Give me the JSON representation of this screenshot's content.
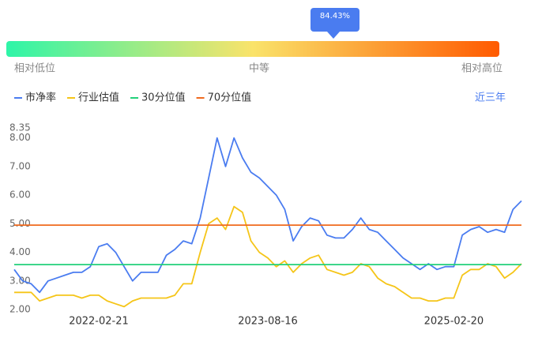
{
  "gauge": {
    "percentile_label": "84.43%",
    "low": "相对低位",
    "mid": "中等",
    "high": "相对高位"
  },
  "range_button": "近三年",
  "chart_data": {
    "type": "line",
    "categories": [
      null,
      null,
      null,
      null,
      null,
      null,
      null,
      null,
      null,
      null,
      "2022-02-21",
      null,
      null,
      null,
      null,
      null,
      null,
      null,
      null,
      null,
      null,
      null,
      null,
      null,
      null,
      null,
      null,
      null,
      null,
      null,
      "2023-08-16",
      null,
      null,
      null,
      null,
      null,
      null,
      null,
      null,
      null,
      null,
      null,
      null,
      null,
      null,
      null,
      null,
      null,
      null,
      null,
      null,
      null,
      "2025-02-20",
      null,
      null,
      null,
      null,
      null,
      null,
      null,
      null
    ],
    "series": [
      {
        "name": "市净率",
        "color": "#4a7cf0",
        "values": [
          3.4,
          3.0,
          2.9,
          2.6,
          3.0,
          3.1,
          3.2,
          3.3,
          3.3,
          3.5,
          4.2,
          4.3,
          4.0,
          3.5,
          3.0,
          3.3,
          3.3,
          3.3,
          3.9,
          4.1,
          4.4,
          4.3,
          5.2,
          6.6,
          8.0,
          7.0,
          8.0,
          7.3,
          6.8,
          6.6,
          6.3,
          6.0,
          5.5,
          4.4,
          4.9,
          5.2,
          5.1,
          4.6,
          4.5,
          4.5,
          4.8,
          5.2,
          4.8,
          4.7,
          4.4,
          4.1,
          3.8,
          3.6,
          3.4,
          3.6,
          3.4,
          3.5,
          3.5,
          4.6,
          4.8,
          4.9,
          4.7,
          4.8,
          4.7,
          5.5,
          5.8
        ]
      },
      {
        "name": "行业估值",
        "color": "#f5c518",
        "values": [
          2.6,
          2.6,
          2.6,
          2.3,
          2.4,
          2.5,
          2.5,
          2.5,
          2.4,
          2.5,
          2.5,
          2.3,
          2.2,
          2.1,
          2.3,
          2.4,
          2.4,
          2.4,
          2.4,
          2.5,
          2.9,
          2.9,
          4.0,
          5.0,
          5.2,
          4.8,
          5.6,
          5.4,
          4.4,
          4.0,
          3.8,
          3.5,
          3.7,
          3.3,
          3.6,
          3.8,
          3.9,
          3.4,
          3.3,
          3.2,
          3.3,
          3.6,
          3.5,
          3.1,
          2.9,
          2.8,
          2.6,
          2.4,
          2.4,
          2.3,
          2.3,
          2.4,
          2.4,
          3.2,
          3.4,
          3.4,
          3.6,
          3.5,
          3.1,
          3.3,
          3.6
        ]
      },
      {
        "name": "30分位值",
        "color": "#22d07a",
        "values": [
          3.57,
          3.57,
          3.57,
          3.57,
          3.57,
          3.57,
          3.57,
          3.57,
          3.57,
          3.57,
          3.57,
          3.57,
          3.57,
          3.57,
          3.57,
          3.57,
          3.57,
          3.57,
          3.57,
          3.57,
          3.57,
          3.57,
          3.57,
          3.57,
          3.57,
          3.57,
          3.57,
          3.57,
          3.57,
          3.57,
          3.57,
          3.57,
          3.57,
          3.57,
          3.57,
          3.57,
          3.57,
          3.57,
          3.57,
          3.57,
          3.57,
          3.57,
          3.57,
          3.57,
          3.57,
          3.57,
          3.57,
          3.57,
          3.57,
          3.57,
          3.57,
          3.57,
          3.57,
          3.57,
          3.57,
          3.57,
          3.57,
          3.57,
          3.57,
          3.57,
          3.57
        ]
      },
      {
        "name": "70分位值",
        "color": "#f06a1e",
        "values": [
          4.95,
          4.95,
          4.95,
          4.95,
          4.95,
          4.95,
          4.95,
          4.95,
          4.95,
          4.95,
          4.95,
          4.95,
          4.95,
          4.95,
          4.95,
          4.95,
          4.95,
          4.95,
          4.95,
          4.95,
          4.95,
          4.95,
          4.95,
          4.95,
          4.95,
          4.95,
          4.95,
          4.95,
          4.95,
          4.95,
          4.95,
          4.95,
          4.95,
          4.95,
          4.95,
          4.95,
          4.95,
          4.95,
          4.95,
          4.95,
          4.95,
          4.95,
          4.95,
          4.95,
          4.95,
          4.95,
          4.95,
          4.95,
          4.95,
          4.95,
          4.95,
          4.95,
          4.95,
          4.95,
          4.95,
          4.95,
          4.95,
          4.95,
          4.95,
          4.95,
          4.95
        ]
      }
    ],
    "ylim": [
      2,
      8.35
    ],
    "yticks": [
      {
        "value": 2,
        "label": "2.00"
      },
      {
        "value": 3,
        "label": "3.00"
      },
      {
        "value": 4,
        "label": "4.00"
      },
      {
        "value": 5,
        "label": "5.00"
      },
      {
        "value": 6,
        "label": "6.00"
      },
      {
        "value": 7,
        "label": "7.00"
      },
      {
        "value": 8,
        "label": "8.00"
      },
      {
        "value": 8.35,
        "label": "8.35"
      }
    ]
  }
}
